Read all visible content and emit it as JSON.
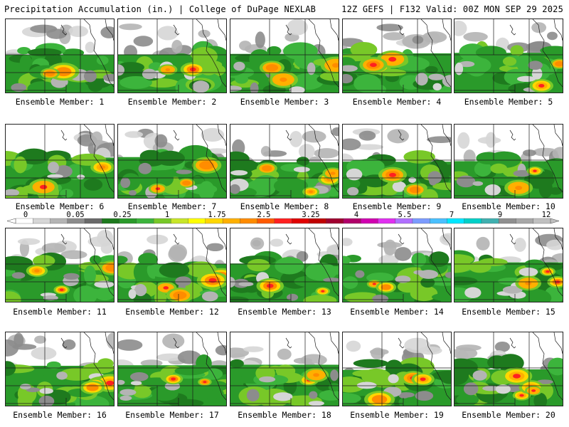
{
  "header": {
    "left": "Precipitation Accumulation (in.) | College of DuPage NEXLAB",
    "right": "12Z GEFS | F132 Valid: 00Z MON SEP 29 2025"
  },
  "colorbar": {
    "labels": [
      "0",
      "0.05",
      "0.25",
      "1",
      "1.75",
      "2.5",
      "3.25",
      "4",
      "5.5",
      "7",
      "9",
      "12"
    ],
    "colors": [
      "#ffffff",
      "#d6d6d6",
      "#b4b4b4",
      "#8c8c8c",
      "#6a6a6a",
      "#1e7a1e",
      "#2a9a2a",
      "#3cb43c",
      "#78c828",
      "#c8e628",
      "#ffff00",
      "#ffd700",
      "#ffb000",
      "#ff8c00",
      "#ff5a00",
      "#ff2020",
      "#e00000",
      "#c00000",
      "#a00030",
      "#b0006a",
      "#d000b0",
      "#e030f0",
      "#b070ff",
      "#7c9cff",
      "#4ac0ff",
      "#00e6ff",
      "#00d0c8",
      "#40b0b0",
      "#909090",
      "#a8a8a8",
      "#c0c0c0"
    ]
  },
  "panels": [
    {
      "label": "Ensemble Member: 1"
    },
    {
      "label": "Ensemble Member: 2"
    },
    {
      "label": "Ensemble Member: 3"
    },
    {
      "label": "Ensemble Member: 4"
    },
    {
      "label": "Ensemble Member: 5"
    },
    {
      "label": "Ensemble Member: 6"
    },
    {
      "label": "Ensemble Member: 7"
    },
    {
      "label": "Ensemble Member: 8"
    },
    {
      "label": "Ensemble Member: 9"
    },
    {
      "label": "Ensemble Member: 10"
    },
    {
      "label": "Ensemble Member: 11"
    },
    {
      "label": "Ensemble Member: 12"
    },
    {
      "label": "Ensemble Member: 13"
    },
    {
      "label": "Ensemble Member: 14"
    },
    {
      "label": "Ensemble Member: 15"
    },
    {
      "label": "Ensemble Member: 16"
    },
    {
      "label": "Ensemble Member: 17"
    },
    {
      "label": "Ensemble Member: 18"
    },
    {
      "label": "Ensemble Member: 19"
    },
    {
      "label": "Ensemble Member: 20"
    }
  ]
}
